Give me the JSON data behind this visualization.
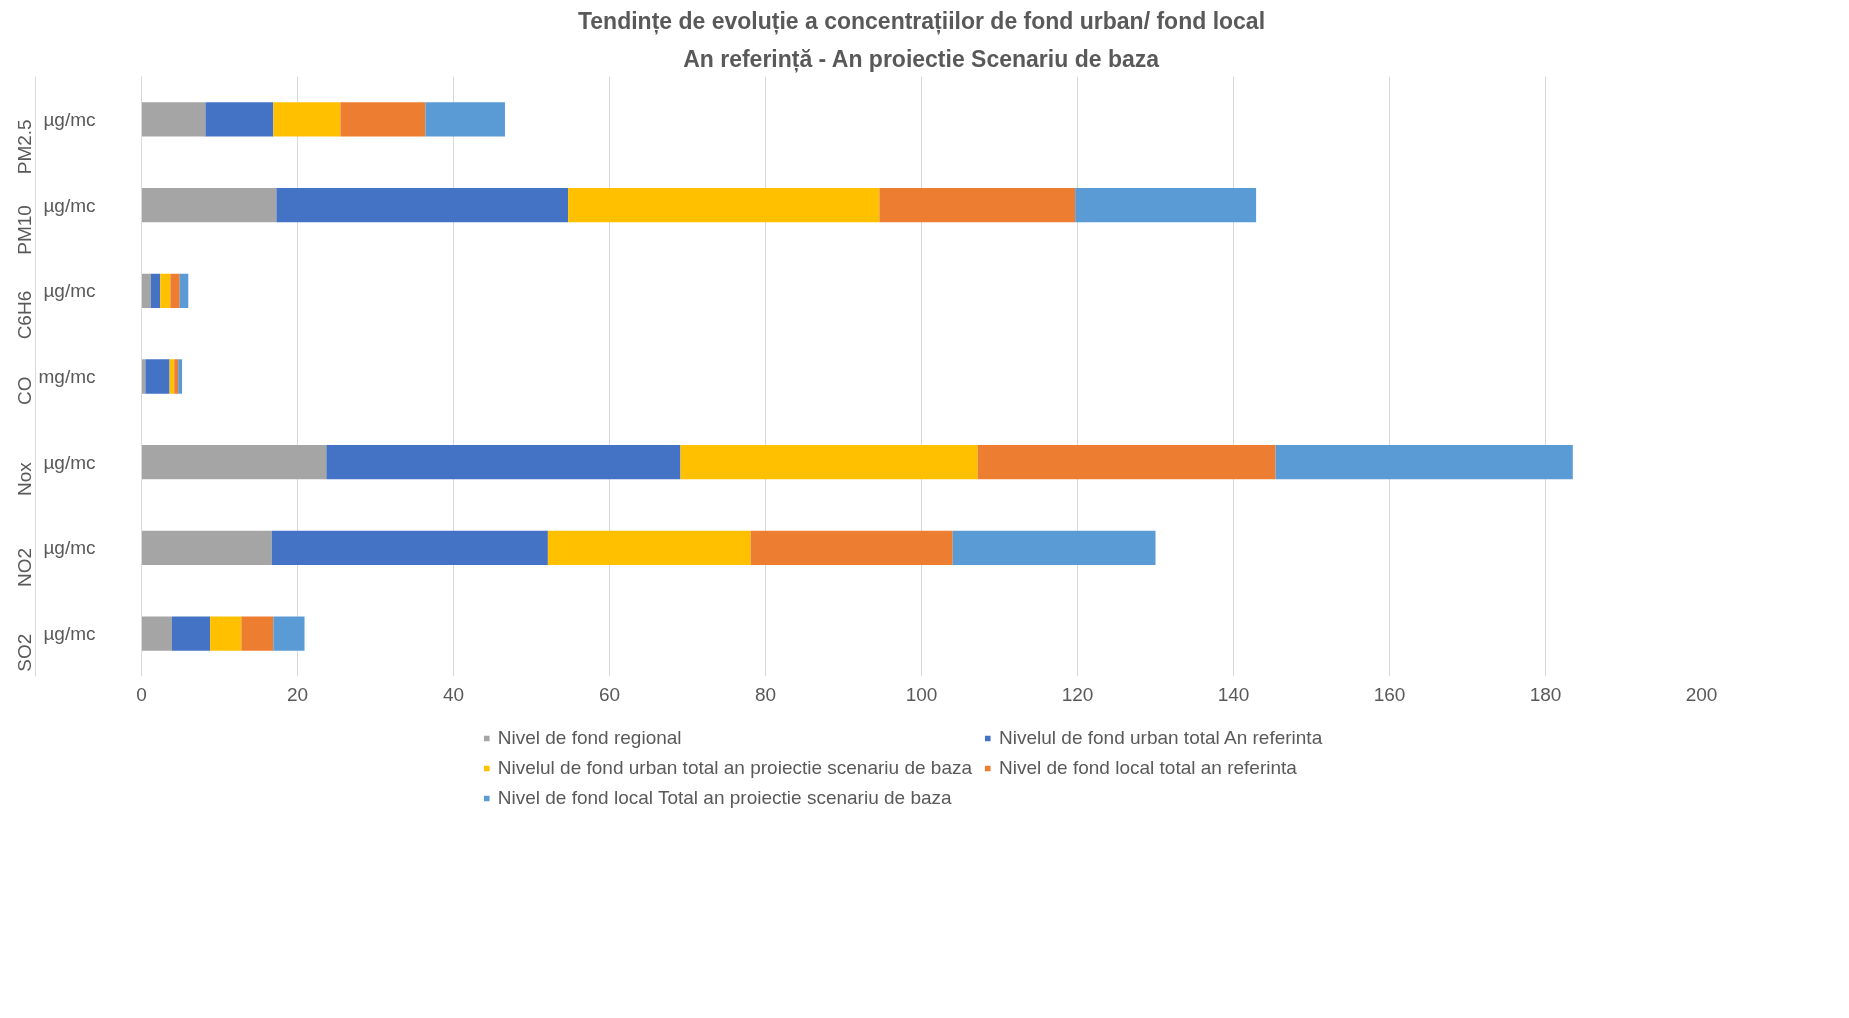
{
  "chart_data": {
    "type": "bar",
    "orientation": "horizontal",
    "stacked": true,
    "title": "Tendințe de evoluție a concentrațiilor de fond urban/ fond local",
    "subtitle": "An referință - An proiectie Scenariu de baza",
    "categories": [
      "PM2.5",
      "PM10",
      "C6H6",
      "CO",
      "Nox",
      "NO2",
      "SO2"
    ],
    "y2_categories": [
      "µg/mc",
      "µg/mc",
      "µg/mc",
      "mg/mc",
      "µg/mc",
      "µg/mc",
      "µg/mc"
    ],
    "series": [
      {
        "name": "Nivel de fond regional",
        "color": "#a5a5a5",
        "values": [
          8.2,
          17.3,
          1.2,
          0.5,
          23.7,
          16.7,
          3.9
        ]
      },
      {
        "name": "Nivelul de fond urban total An referinta",
        "color": "#4472c4",
        "values": [
          8.7,
          37.4,
          1.2,
          3.1,
          45.4,
          35.4,
          4.9
        ]
      },
      {
        "name": "Nivelul de fond urban total an proiectie scenariu de baza",
        "color": "#ffc000",
        "values": [
          8.6,
          39.9,
          1.3,
          0.6,
          38.1,
          26.0,
          4.0
        ]
      },
      {
        "name": "Nivel de fond local total an referinta",
        "color": "#ed7d31",
        "values": [
          10.9,
          25.1,
          1.2,
          0.5,
          38.2,
          25.9,
          4.1
        ]
      },
      {
        "name": "Nivel de fond local Total an proiectie scenariu de baza",
        "color": "#5b9bd5",
        "values": [
          10.2,
          23.2,
          1.1,
          0.5,
          38.1,
          26.0,
          4.0
        ]
      }
    ],
    "xlim": [
      0,
      200
    ],
    "xticks": [
      0,
      20,
      40,
      60,
      80,
      100,
      120,
      140,
      160,
      180,
      200
    ],
    "grid": "x",
    "legend": "bottom"
  }
}
